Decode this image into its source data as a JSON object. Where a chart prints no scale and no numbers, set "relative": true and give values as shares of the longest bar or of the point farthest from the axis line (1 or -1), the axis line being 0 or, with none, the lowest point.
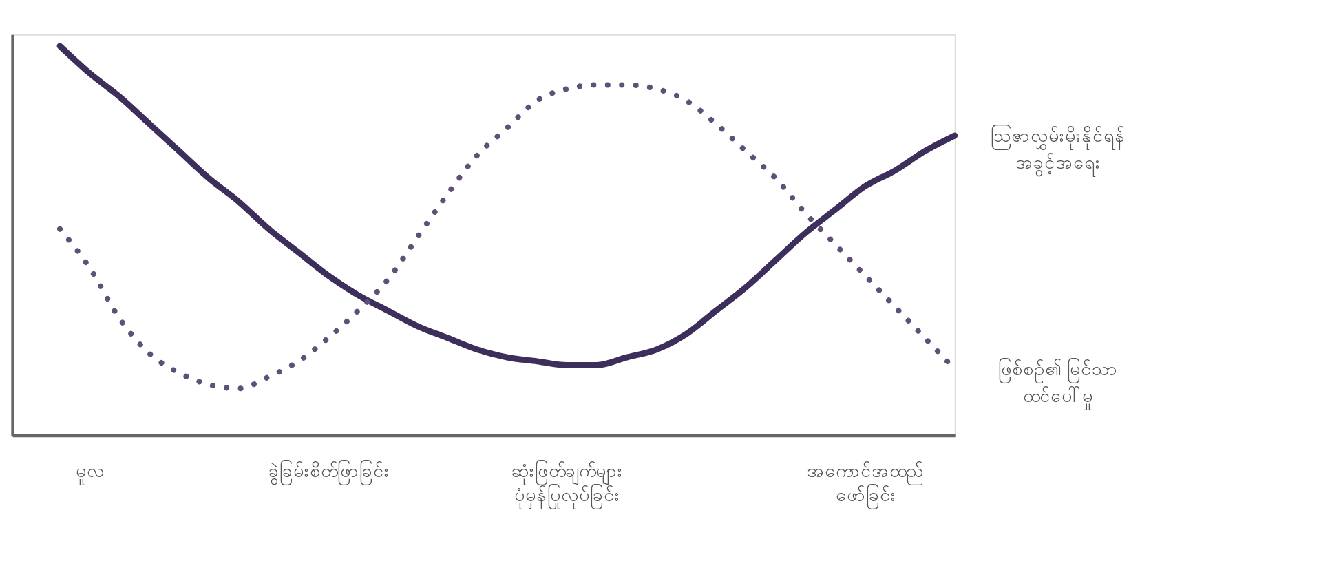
{
  "chart_data": {
    "type": "line",
    "relative": true,
    "categories": [
      null,
      "မူလ",
      null,
      null,
      null,
      null,
      null,
      null,
      null,
      "ခွဲခြမ်းစိတ်ဖြာခြင်း",
      null,
      null,
      null,
      null,
      null,
      null,
      null,
      "ဆုံးဖြတ်ချက်များ\nပုံမှန်ပြုလုပ်ခြင်း",
      null,
      null,
      null,
      null,
      null,
      null,
      null,
      null,
      null,
      "အကောင်အထည်\nဖော်ခြင်း",
      null,
      null,
      null
    ],
    "series": [
      {
        "name": "ဩဇာလွှမ်းမိုးနိုင်ရန်\nအခွင့်အရေး",
        "color": "#3d2e5c",
        "line_style": "solid",
        "values": [
          1.0,
          0.93,
          0.87,
          0.8,
          0.73,
          0.66,
          0.6,
          0.53,
          0.47,
          0.41,
          0.36,
          0.32,
          0.28,
          0.25,
          0.22,
          0.2,
          0.19,
          0.18,
          0.18,
          0.2,
          0.22,
          0.26,
          0.32,
          0.38,
          0.45,
          0.52,
          0.58,
          0.64,
          0.68,
          0.73,
          0.77
        ]
      },
      {
        "name": "ဖြစ်စဉ်၏ မြင်သာ\nထင်ပေါ်မှု",
        "color": "#5e5078",
        "line_style": "dotted",
        "values": [
          0.53,
          0.43,
          0.3,
          0.21,
          0.16,
          0.13,
          0.12,
          0.15,
          0.19,
          0.25,
          0.32,
          0.4,
          0.51,
          0.62,
          0.72,
          0.79,
          0.86,
          0.89,
          0.9,
          0.9,
          0.89,
          0.86,
          0.8,
          0.73,
          0.66,
          0.57,
          0.49,
          0.41,
          0.33,
          0.25,
          0.17
        ]
      }
    ],
    "grid": false,
    "marker": "none"
  }
}
